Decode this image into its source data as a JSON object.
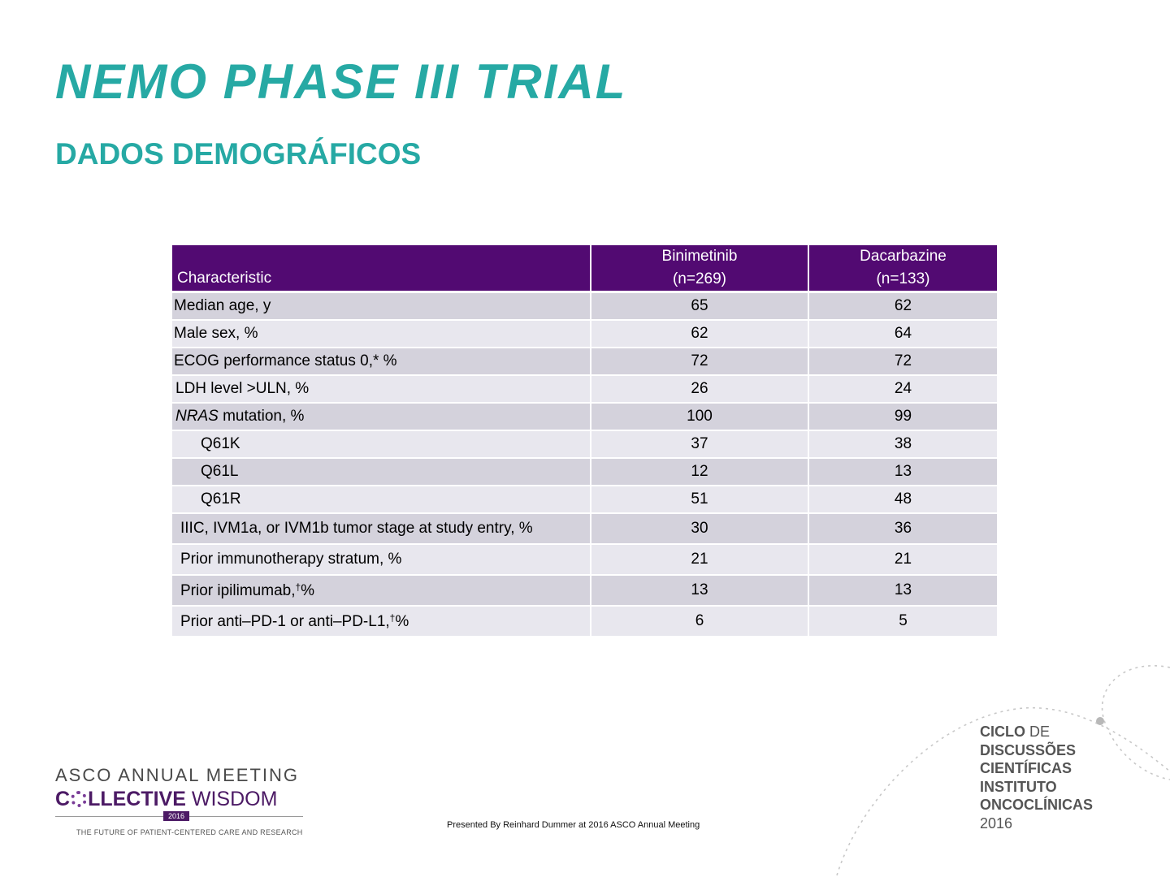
{
  "slide": {
    "title": "NEMO PHASE III TRIAL",
    "subtitle": "DADOS DEMOGRÁFICOS"
  },
  "table": {
    "header": {
      "characteristic": "Characteristic",
      "col1_name": "Binimetinib",
      "col1_n": "(n=269)",
      "col2_name": "Dacarbazine",
      "col2_n": "(n=133)"
    },
    "rows": [
      {
        "label": "Median age, y",
        "binimetinib": "65",
        "dacarbazine": "62"
      },
      {
        "label": "Male sex, %",
        "binimetinib": "62",
        "dacarbazine": "64"
      },
      {
        "label": "ECOG performance status 0,* %",
        "binimetinib": "72",
        "dacarbazine": "72"
      },
      {
        "label": "LDH level >ULN, %",
        "binimetinib": "26",
        "dacarbazine": "24"
      },
      {
        "label_italic": "NRAS",
        "label_rest": " mutation, %",
        "binimetinib": "100",
        "dacarbazine": "99"
      },
      {
        "label": "Q61K",
        "binimetinib": "37",
        "dacarbazine": "38"
      },
      {
        "label": "Q61L",
        "binimetinib": "12",
        "dacarbazine": "13"
      },
      {
        "label": "Q61R",
        "binimetinib": "51",
        "dacarbazine": "48"
      },
      {
        "label": "IIIC, IVM1a, or IVM1b tumor stage at study entry, %",
        "binimetinib": "30",
        "dacarbazine": "36"
      },
      {
        "label": "Prior immunotherapy stratum, %",
        "binimetinib": "21",
        "dacarbazine": "21"
      },
      {
        "label_main": "Prior ipilimumab,",
        "label_sup": "†",
        "label_tail": "%",
        "binimetinib": "13",
        "dacarbazine": "13"
      },
      {
        "label_main": "Prior anti–PD-1 or anti–PD-L1,",
        "label_sup": "†",
        "label_tail": "%",
        "binimetinib": "6",
        "dacarbazine": "5"
      }
    ]
  },
  "footer": {
    "presented_by": "Presented By Reinhard Dummer at 2016 ASCO Annual Meeting"
  },
  "asco_logo": {
    "line1": "ASCO ANNUAL MEETING",
    "line2_c": "C",
    "line2_bold": "LLECTIVE",
    "line2_rest": " WISDOM",
    "year": "2016",
    "tagline": "THE FUTURE OF PATIENT-CENTERED CARE AND RESEARCH"
  },
  "ciclo_logo": {
    "line1_bold": "CICLO",
    "line1_rest": " DE",
    "line2": "DISCUSSÕES",
    "line3": "CIENTÍFICAS",
    "line4": "INSTITUTO",
    "line5": "ONCOCLÍNICAS",
    "line6": "2016"
  },
  "colors": {
    "title": "#26a9a4",
    "header_bg": "#520a72",
    "row_dark": "#d4d2dc",
    "row_light": "#e8e7ee",
    "asco_purple": "#4c1a65"
  }
}
